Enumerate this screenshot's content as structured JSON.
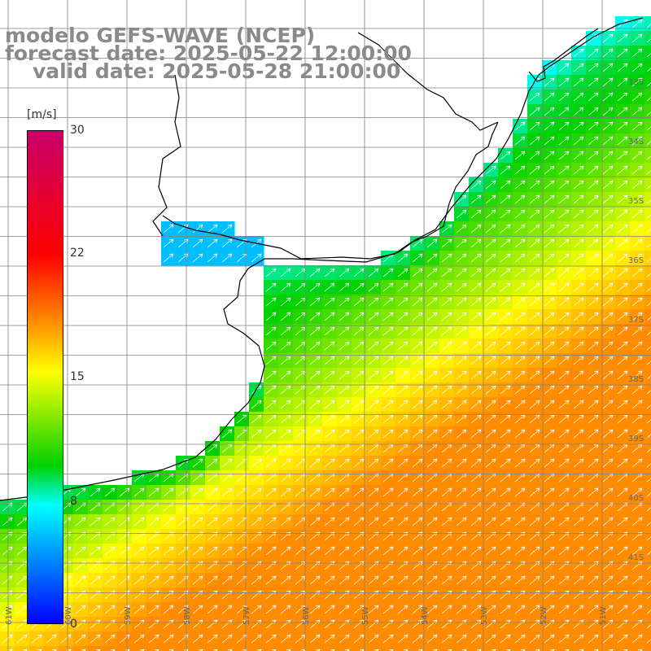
{
  "title": {
    "line1": "modelo GEFS-WAVE (NCEP)",
    "line2": "forecast date: 2025-05-22 12:00:00",
    "line3": "valid date: 2025-05-28 21:00:00"
  },
  "colorbar": {
    "unit": "[m/s]",
    "ticks": [
      "30",
      "22",
      "15",
      "8",
      "0"
    ],
    "min": 0,
    "max": 30,
    "colors": [
      "#0000ff",
      "#00ffff",
      "#00d000",
      "#ffff00",
      "#ff7a00",
      "#ff0000",
      "#c8006a"
    ]
  },
  "map": {
    "lon_labels": [
      "61W",
      "60W",
      "59W",
      "58W",
      "57W",
      "56W",
      "55W",
      "54W",
      "53W",
      "52W",
      "51W"
    ],
    "lat_labels": [
      "33S",
      "34S",
      "35S",
      "36S",
      "37S",
      "38S",
      "39S",
      "40S",
      "41S"
    ],
    "land_color": "#ffffff",
    "grid_color": "#808080",
    "arrow_color": "#ffffff"
  }
}
